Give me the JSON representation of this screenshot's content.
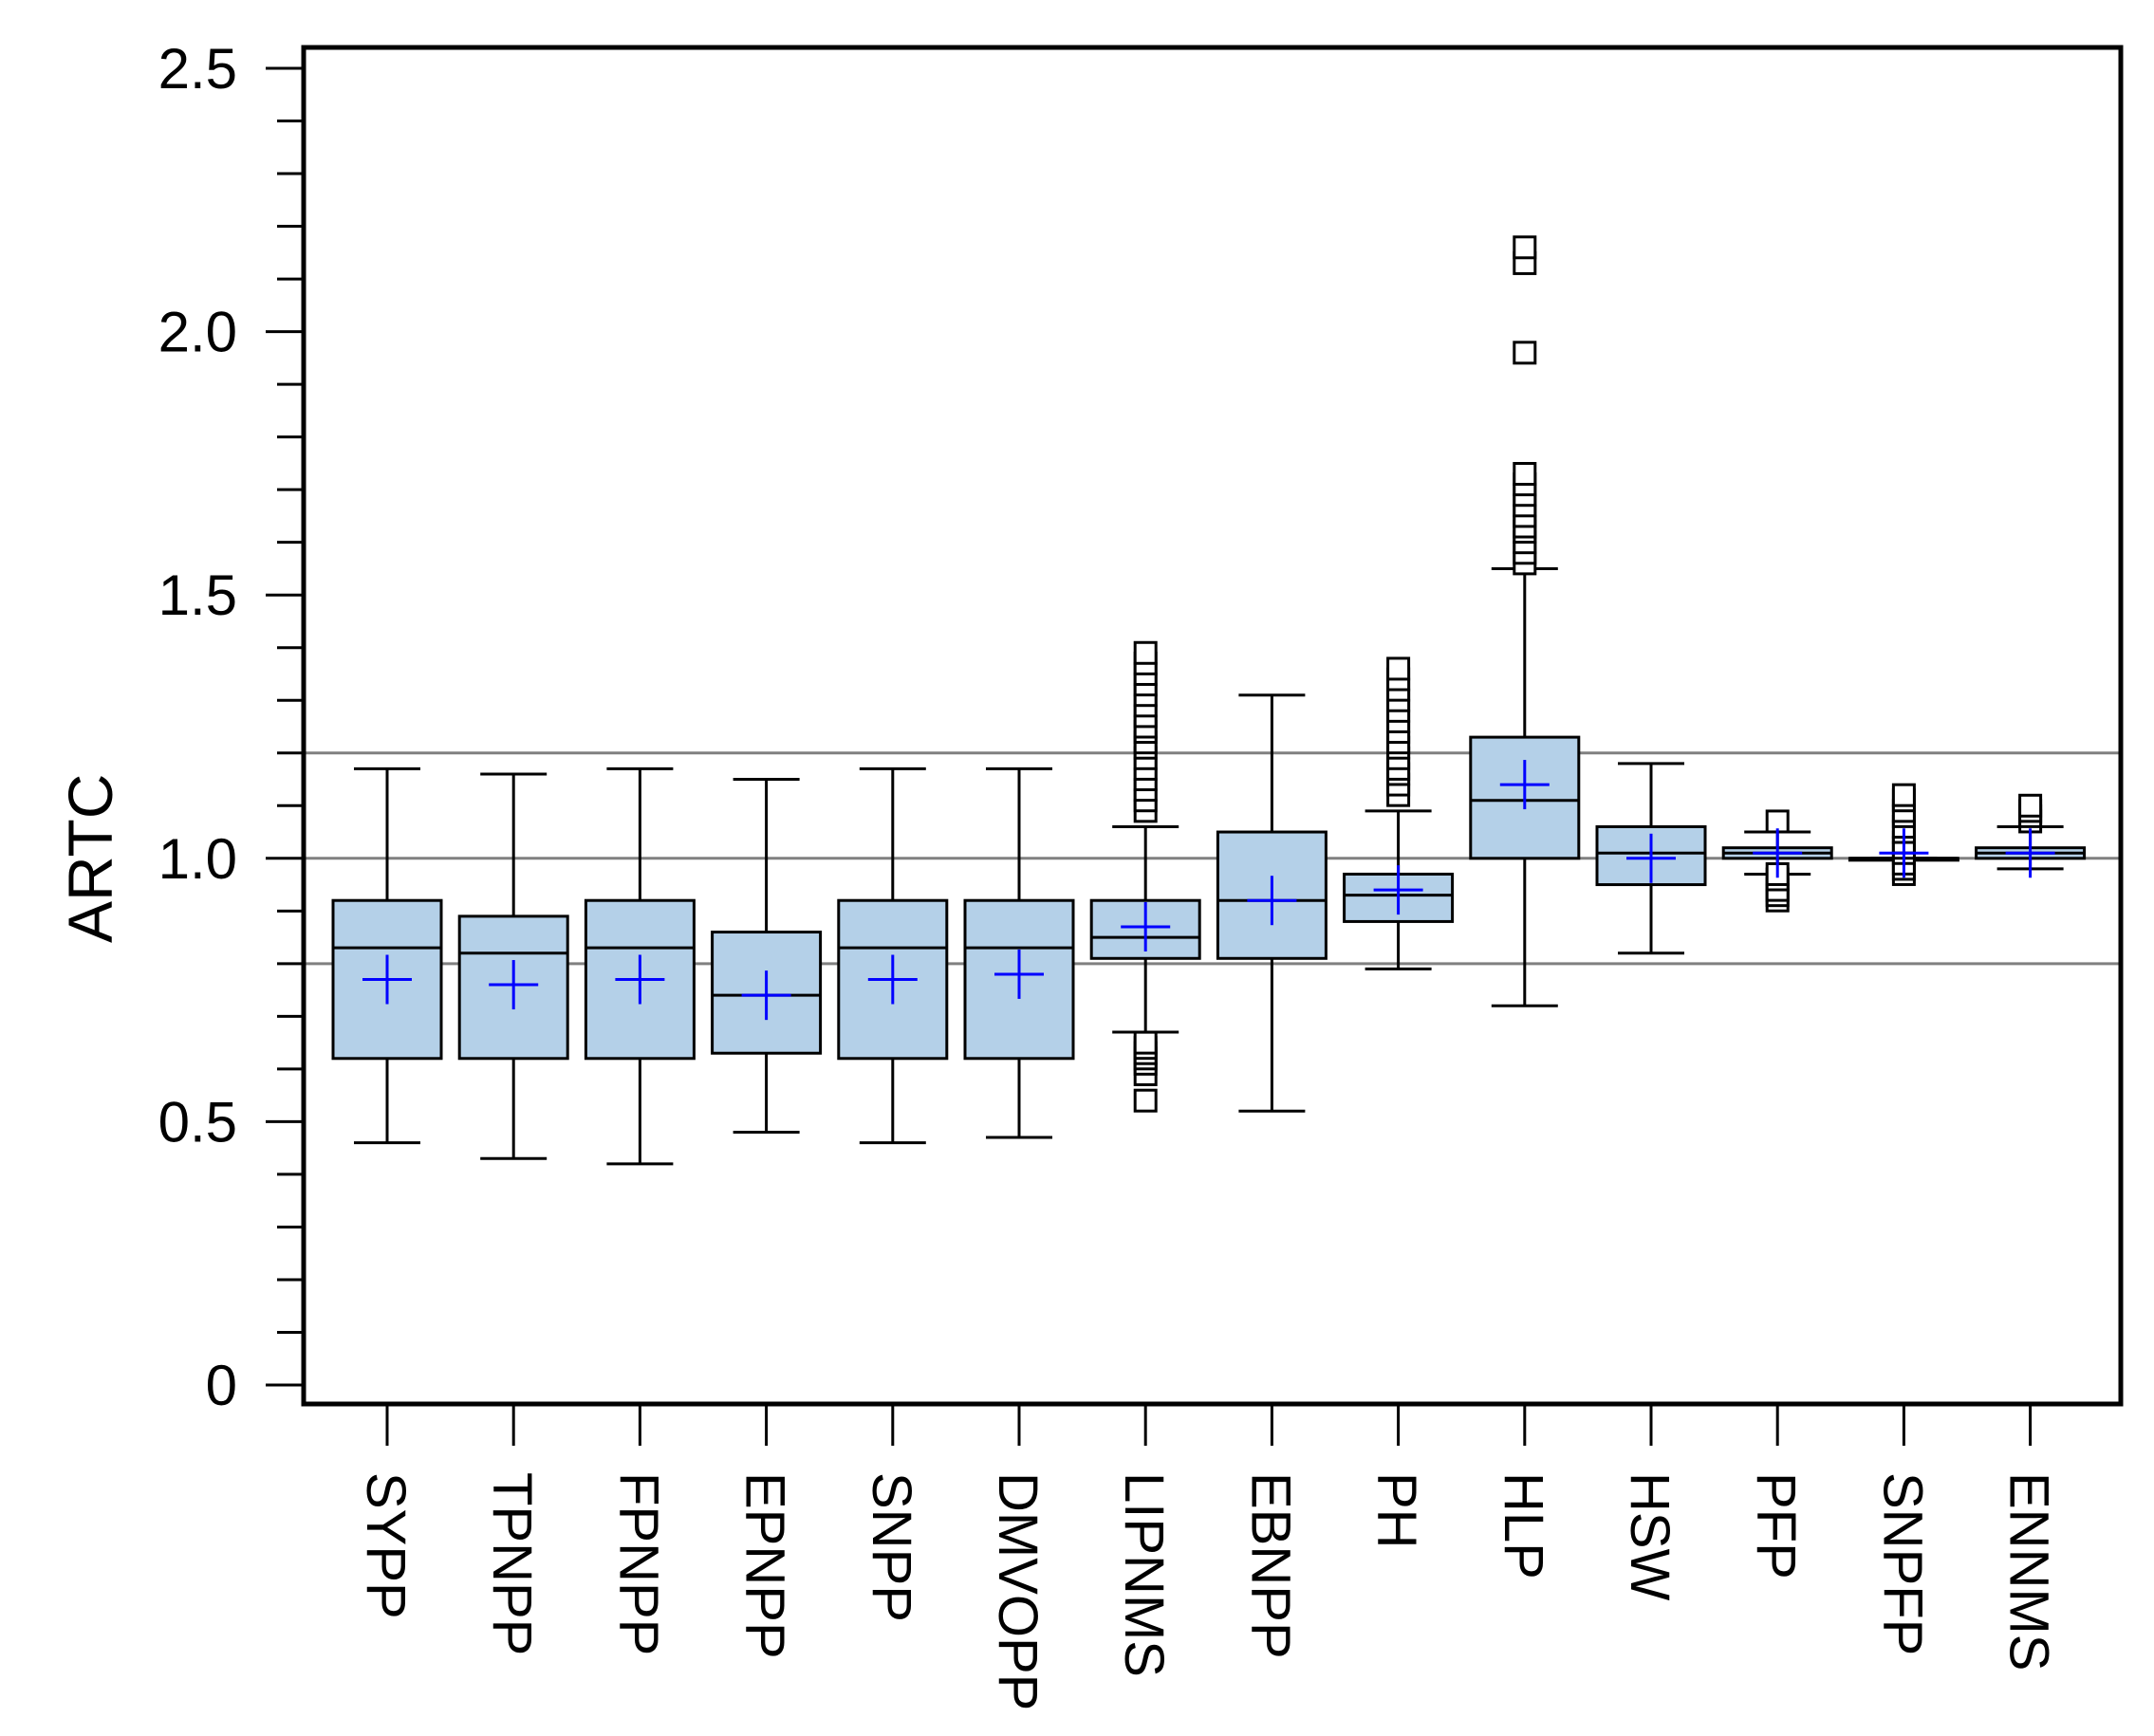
{
  "chart_data": {
    "type": "box",
    "title": "",
    "ylabel": "ARTC",
    "xlabel": "",
    "ylim": [
      0,
      2.5
    ],
    "yticks": [
      0,
      0.5,
      1.0,
      1.5,
      2.0,
      2.5
    ],
    "ytick_labels": [
      "0",
      "0.5",
      "1.0",
      "1.5",
      "2.0",
      "2.5"
    ],
    "minor_tick_step": 0.1,
    "reference_lines": [
      0.8,
      1.0,
      1.2
    ],
    "colors": {
      "box_fill": "#b4d0e8",
      "mean_marker": "#0000ff",
      "reference_line": "#808080",
      "outline": "#000000"
    },
    "categories": [
      "SYPP",
      "TPNPP",
      "FPNPP",
      "EPNPP",
      "SNPP",
      "DMVOPP",
      "LIPNMS",
      "EBNPP",
      "PH",
      "HLP",
      "HSW",
      "PFP",
      "SNPFP",
      "ENNMS"
    ],
    "boxes": [
      {
        "label": "SYPP",
        "whisker_low": 0.46,
        "q1": 0.62,
        "median": 0.83,
        "q3": 0.92,
        "whisker_high": 1.17,
        "mean": 0.77,
        "outliers": []
      },
      {
        "label": "TPNPP",
        "whisker_low": 0.43,
        "q1": 0.62,
        "median": 0.82,
        "q3": 0.89,
        "whisker_high": 1.16,
        "mean": 0.76,
        "outliers": []
      },
      {
        "label": "FPNPP",
        "whisker_low": 0.42,
        "q1": 0.62,
        "median": 0.83,
        "q3": 0.92,
        "whisker_high": 1.17,
        "mean": 0.77,
        "outliers": []
      },
      {
        "label": "EPNPP",
        "whisker_low": 0.48,
        "q1": 0.63,
        "median": 0.74,
        "q3": 0.86,
        "whisker_high": 1.15,
        "mean": 0.74,
        "outliers": []
      },
      {
        "label": "SNPP",
        "whisker_low": 0.46,
        "q1": 0.62,
        "median": 0.83,
        "q3": 0.92,
        "whisker_high": 1.17,
        "mean": 0.77,
        "outliers": []
      },
      {
        "label": "DMVOPP",
        "whisker_low": 0.47,
        "q1": 0.62,
        "median": 0.83,
        "q3": 0.92,
        "whisker_high": 1.17,
        "mean": 0.78,
        "outliers": []
      },
      {
        "label": "LIPNMS",
        "whisker_low": 0.67,
        "q1": 0.81,
        "median": 0.85,
        "q3": 0.92,
        "whisker_high": 1.06,
        "mean": 0.87,
        "outliers": [
          0.54,
          0.59,
          0.61,
          0.62,
          0.63,
          0.64,
          0.65,
          1.09,
          1.11,
          1.13,
          1.15,
          1.17,
          1.19,
          1.21,
          1.22,
          1.24,
          1.25,
          1.27,
          1.29,
          1.31,
          1.33,
          1.35,
          1.37,
          1.39
        ]
      },
      {
        "label": "EBNPP",
        "whisker_low": 0.52,
        "q1": 0.81,
        "median": 0.92,
        "q3": 1.05,
        "whisker_high": 1.31,
        "mean": 0.92,
        "outliers": []
      },
      {
        "label": "PH",
        "whisker_low": 0.79,
        "q1": 0.88,
        "median": 0.93,
        "q3": 0.97,
        "whisker_high": 1.09,
        "mean": 0.94,
        "outliers": [
          1.12,
          1.14,
          1.16,
          1.17,
          1.19,
          1.21,
          1.22,
          1.24,
          1.26,
          1.28,
          1.3,
          1.32,
          1.34,
          1.36
        ]
      },
      {
        "label": "HLP",
        "whisker_low": 0.72,
        "q1": 1.0,
        "median": 1.11,
        "q3": 1.23,
        "whisker_high": 1.55,
        "mean": 1.14,
        "outliers": [
          1.56,
          1.58,
          1.6,
          1.62,
          1.63,
          1.65,
          1.67,
          1.69,
          1.71,
          1.73,
          1.96,
          2.13,
          2.16
        ]
      },
      {
        "label": "HSW",
        "whisker_low": 0.82,
        "q1": 0.95,
        "median": 1.01,
        "q3": 1.06,
        "whisker_high": 1.18,
        "mean": 1.0,
        "outliers": []
      },
      {
        "label": "PFP",
        "whisker_low": 0.97,
        "q1": 1.0,
        "median": 1.01,
        "q3": 1.02,
        "whisker_high": 1.05,
        "mean": 1.01,
        "outliers": [
          0.92,
          0.93,
          0.94,
          0.96,
          0.97,
          1.07
        ]
      },
      {
        "label": "SNPFP",
        "whisker_low": 1.0,
        "q1": 1.0,
        "median": 1.0,
        "q3": 1.0,
        "whisker_high": 1.0,
        "mean": 1.01,
        "outliers": [
          0.97,
          0.98,
          0.99,
          1.01,
          1.02,
          1.03,
          1.05,
          1.06,
          1.08,
          1.09,
          1.11,
          1.12
        ]
      },
      {
        "label": "ENNMS",
        "whisker_low": 0.98,
        "q1": 1.0,
        "median": 1.01,
        "q3": 1.02,
        "whisker_high": 1.06,
        "mean": 1.01,
        "outliers": [
          1.07,
          1.08,
          1.09,
          1.1
        ]
      }
    ]
  }
}
